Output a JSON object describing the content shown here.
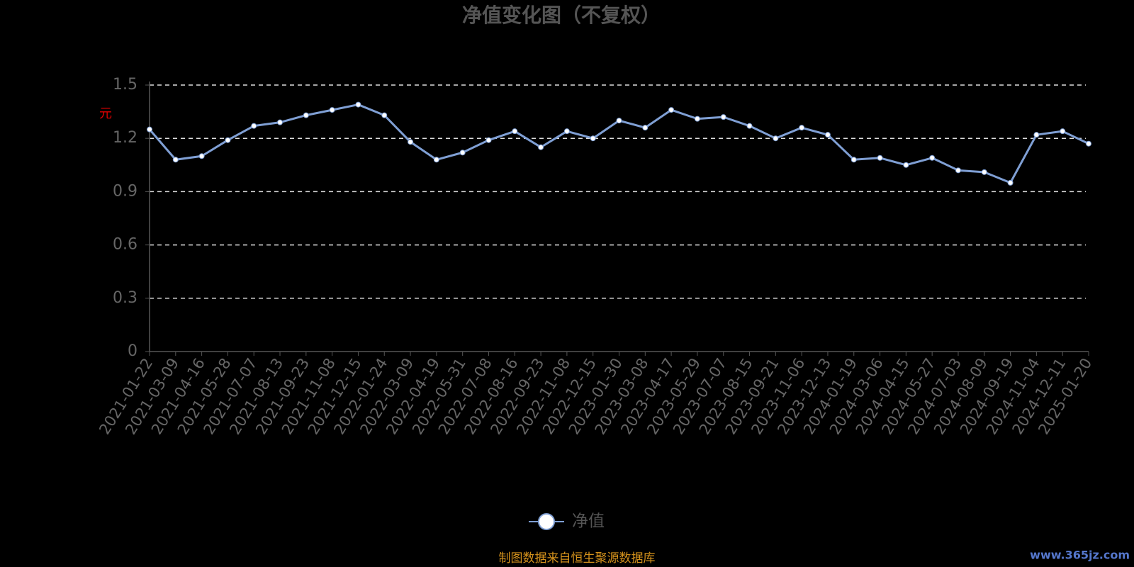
{
  "chart_data": {
    "type": "line",
    "title": "净值变化图（不复权）",
    "y_label": "元",
    "categories": [
      "2021-01-22",
      "2021-03-09",
      "2021-04-16",
      "2021-05-28",
      "2021-07-07",
      "2021-08-13",
      "2021-09-23",
      "2021-11-08",
      "2021-12-15",
      "2022-01-24",
      "2022-03-09",
      "2022-04-19",
      "2022-05-31",
      "2022-07-08",
      "2022-08-16",
      "2022-09-23",
      "2022-11-08",
      "2022-12-15",
      "2023-01-30",
      "2023-03-08",
      "2023-04-17",
      "2023-05-29",
      "2023-07-07",
      "2023-08-15",
      "2023-09-21",
      "2023-11-06",
      "2023-12-13",
      "2024-01-19",
      "2024-03-06",
      "2024-04-15",
      "2024-05-27",
      "2024-07-03",
      "2024-08-09",
      "2024-09-19",
      "2024-11-04",
      "2024-12-11",
      "2025-01-20"
    ],
    "series": [
      {
        "name": "净值",
        "color": "#7f9fd4",
        "values": [
          1.25,
          1.08,
          1.1,
          1.19,
          1.27,
          1.29,
          1.33,
          1.36,
          1.39,
          1.33,
          1.18,
          1.08,
          1.12,
          1.19,
          1.24,
          1.15,
          1.24,
          1.2,
          1.3,
          1.26,
          1.36,
          1.31,
          1.32,
          1.27,
          1.2,
          1.26,
          1.22,
          1.08,
          1.09,
          1.05,
          1.09,
          1.02,
          1.01,
          0.95,
          1.22,
          1.24,
          1.17
        ]
      }
    ],
    "ylim": [
      0,
      1.5
    ],
    "yticks": [
      0,
      {
        "value": 0.3,
        "label": "0.3"
      },
      {
        "value": 0.6,
        "label": "0.6"
      },
      {
        "value": 0.9,
        "label": "0.9"
      },
      {
        "value": 1.2,
        "label": "1.2"
      },
      {
        "value": 1.5,
        "label": "1.5"
      }
    ],
    "grid": true,
    "legend": "bottom",
    "source": "制图数据来自恒生聚源数据库",
    "watermark": "www.365jz.com"
  }
}
